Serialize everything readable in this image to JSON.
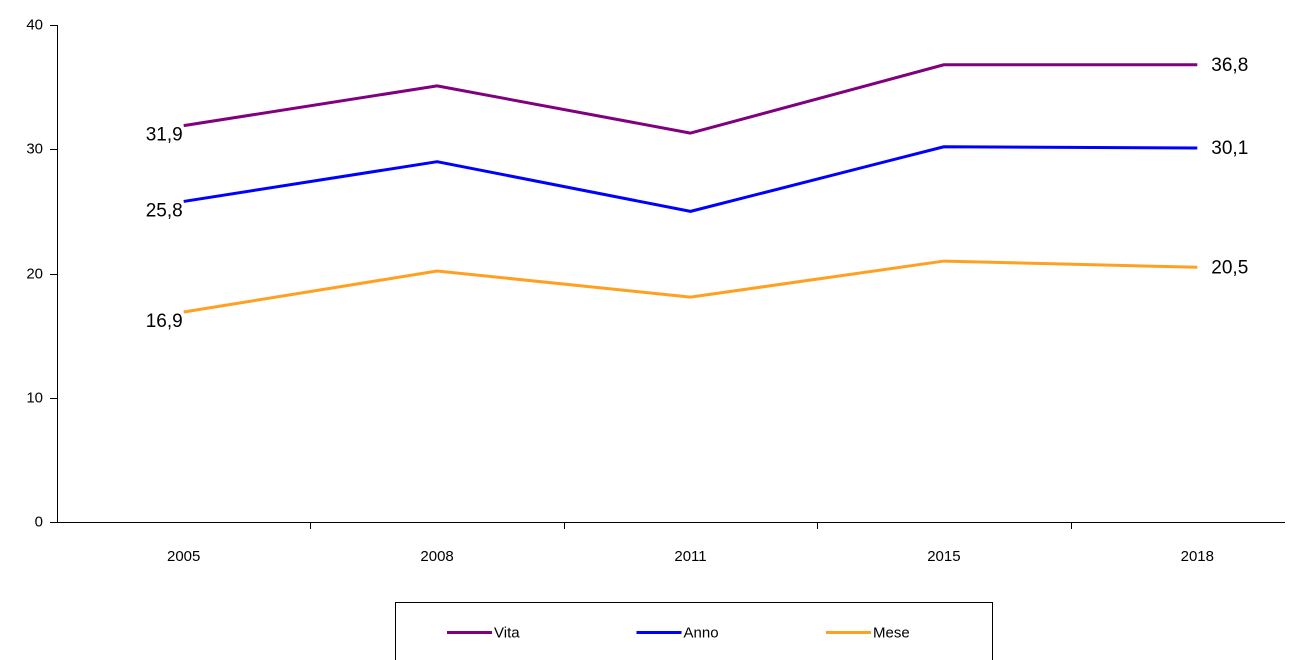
{
  "chart_data": {
    "type": "line",
    "categories": [
      "2005",
      "2008",
      "2011",
      "2015",
      "2018"
    ],
    "series": [
      {
        "name": "Vita",
        "color": "#800080",
        "values": [
          31.9,
          35.1,
          31.3,
          36.8,
          36.8
        ],
        "value_labels": [
          "31,9",
          null,
          null,
          null,
          "36,8"
        ]
      },
      {
        "name": "Anno",
        "color": "#0000ff",
        "values": [
          25.8,
          29.0,
          25.0,
          30.2,
          30.1
        ],
        "value_labels": [
          "25,8",
          null,
          null,
          null,
          "30,1"
        ]
      },
      {
        "name": "Mese",
        "color": "#ffa020",
        "values": [
          16.9,
          20.2,
          18.1,
          21.0,
          20.5
        ],
        "value_labels": [
          "16,9",
          null,
          null,
          null,
          "20,5"
        ]
      }
    ],
    "ylim": [
      0,
      40
    ],
    "yticks": [
      0,
      10,
      20,
      30,
      40
    ],
    "grid": false,
    "legend": "bottom"
  }
}
